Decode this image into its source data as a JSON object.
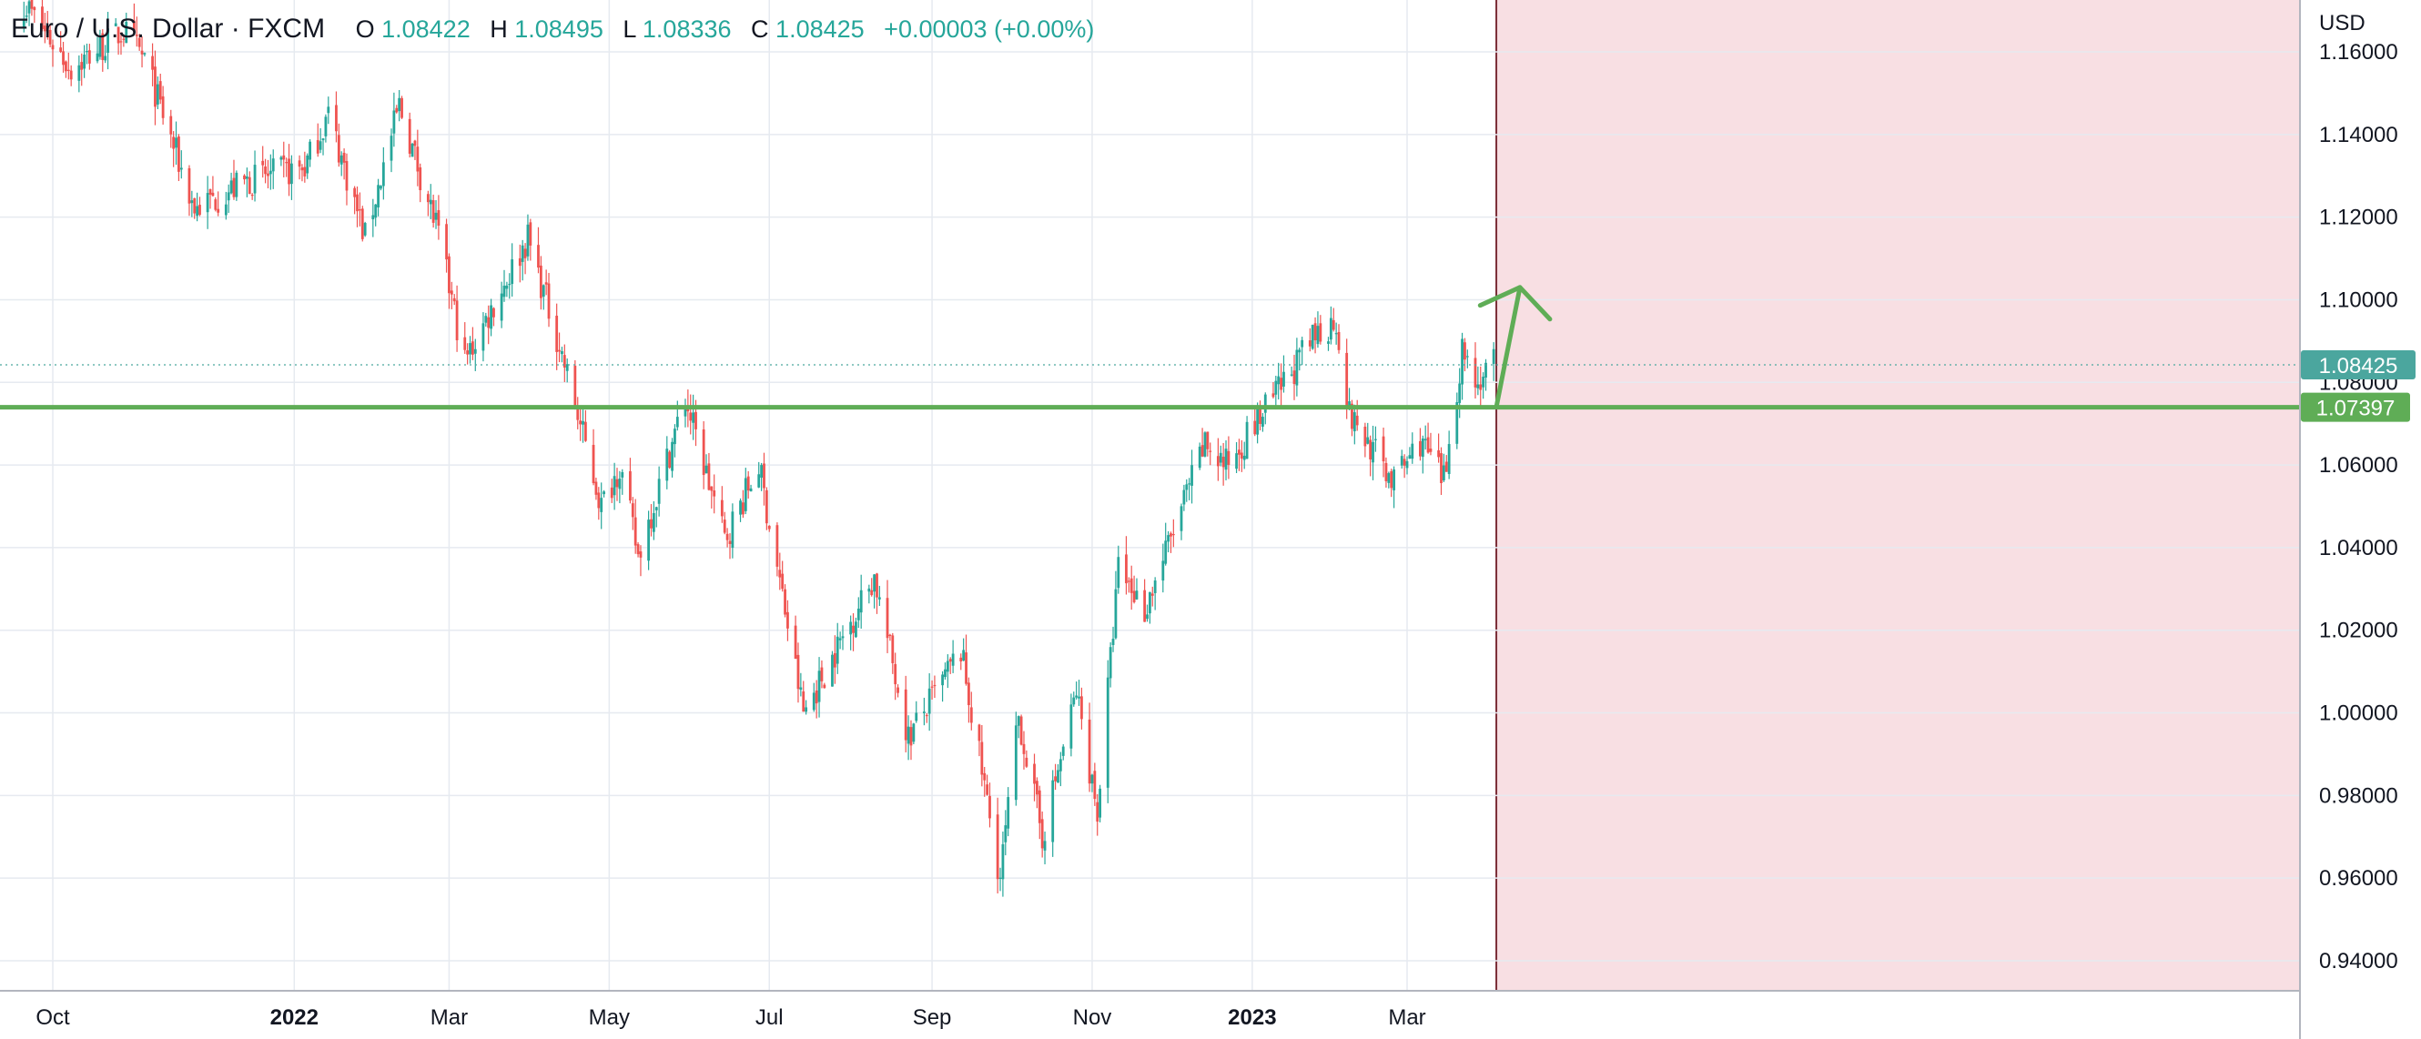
{
  "header": {
    "symbol": "Euro / U.S. Dollar · FXCM",
    "o_label": "O",
    "o_value": "1.08422",
    "h_label": "H",
    "h_value": "1.08495",
    "l_label": "L",
    "l_value": "1.08336",
    "c_label": "C",
    "c_value": "1.08425",
    "change": "+0.00003 (+0.00%)"
  },
  "colors": {
    "up": "#26a69a",
    "down": "#ef5350",
    "grid": "#e6eaf0",
    "support": "#5fad56",
    "shade": "#f8dfe3",
    "last_badge": "#4ba69e",
    "cutoff": "#7b2c36"
  },
  "chart_data": {
    "type": "candlestick",
    "ylabel": "USD",
    "ylim": [
      0.93,
      1.17
    ],
    "y_ticks": [
      "1.16000",
      "1.14000",
      "1.12000",
      "1.10000",
      "1.08000",
      "1.06000",
      "1.04000",
      "1.02000",
      "1.00000",
      "0.98000",
      "0.96000",
      "0.94000"
    ],
    "x_ticks": [
      {
        "label": "Oct",
        "date": "2021-10-01",
        "bold": false
      },
      {
        "label": "2022",
        "date": "2022-01-01",
        "bold": true
      },
      {
        "label": "Mar",
        "date": "2022-03-01",
        "bold": false
      },
      {
        "label": "May",
        "date": "2022-05-01",
        "bold": false
      },
      {
        "label": "Jul",
        "date": "2022-07-01",
        "bold": false
      },
      {
        "label": "Sep",
        "date": "2022-09-01",
        "bold": false
      },
      {
        "label": "Nov",
        "date": "2022-11-01",
        "bold": false
      },
      {
        "label": "2023",
        "date": "2023-01-01",
        "bold": true
      },
      {
        "label": "Mar",
        "date": "2023-03-01",
        "bold": false
      }
    ],
    "price_path": [
      [
        "2021-09-20",
        1.172
      ],
      [
        "2021-10-08",
        1.156
      ],
      [
        "2021-10-28",
        1.165
      ],
      [
        "2021-11-05",
        1.158
      ],
      [
        "2021-11-24",
        1.122
      ],
      [
        "2021-12-15",
        1.129
      ],
      [
        "2022-01-05",
        1.132
      ],
      [
        "2022-01-14",
        1.145
      ],
      [
        "2022-01-28",
        1.115
      ],
      [
        "2022-02-10",
        1.147
      ],
      [
        "2022-02-24",
        1.118
      ],
      [
        "2022-03-07",
        1.085
      ],
      [
        "2022-03-31",
        1.115
      ],
      [
        "2022-04-12",
        1.089
      ],
      [
        "2022-04-28",
        1.05
      ],
      [
        "2022-05-05",
        1.06
      ],
      [
        "2022-05-12",
        1.038
      ],
      [
        "2022-05-30",
        1.076
      ],
      [
        "2022-06-14",
        1.042
      ],
      [
        "2022-06-27",
        1.06
      ],
      [
        "2022-07-14",
        1.0
      ],
      [
        "2022-08-10",
        1.033
      ],
      [
        "2022-08-23",
        0.994
      ],
      [
        "2022-09-12",
        1.015
      ],
      [
        "2022-09-27",
        0.96
      ],
      [
        "2022-10-04",
        0.999
      ],
      [
        "2022-10-13",
        0.97
      ],
      [
        "2022-10-26",
        1.005
      ],
      [
        "2022-11-03",
        0.976
      ],
      [
        "2022-11-11",
        1.035
      ],
      [
        "2022-11-21",
        1.025
      ],
      [
        "2022-12-14",
        1.065
      ],
      [
        "2022-12-22",
        1.06
      ],
      [
        "2023-01-09",
        1.076
      ],
      [
        "2023-01-26",
        1.092
      ],
      [
        "2023-02-02",
        1.095
      ],
      [
        "2023-02-07",
        1.072
      ],
      [
        "2023-02-24",
        1.056
      ],
      [
        "2023-03-06",
        1.066
      ],
      [
        "2023-03-15",
        1.056
      ],
      [
        "2023-03-22",
        1.088
      ],
      [
        "2023-03-28",
        1.08
      ],
      [
        "2023-04-03",
        1.0842
      ]
    ],
    "last_price": 1.08425,
    "last_price_label": "1.08425",
    "support_level": 1.07397,
    "support_label": "1.07397",
    "projection": [
      [
        "2023-04-04",
        1.074
      ],
      [
        "2023-04-13",
        1.103
      ]
    ],
    "forecast_cutoff": "2023-04-04"
  }
}
